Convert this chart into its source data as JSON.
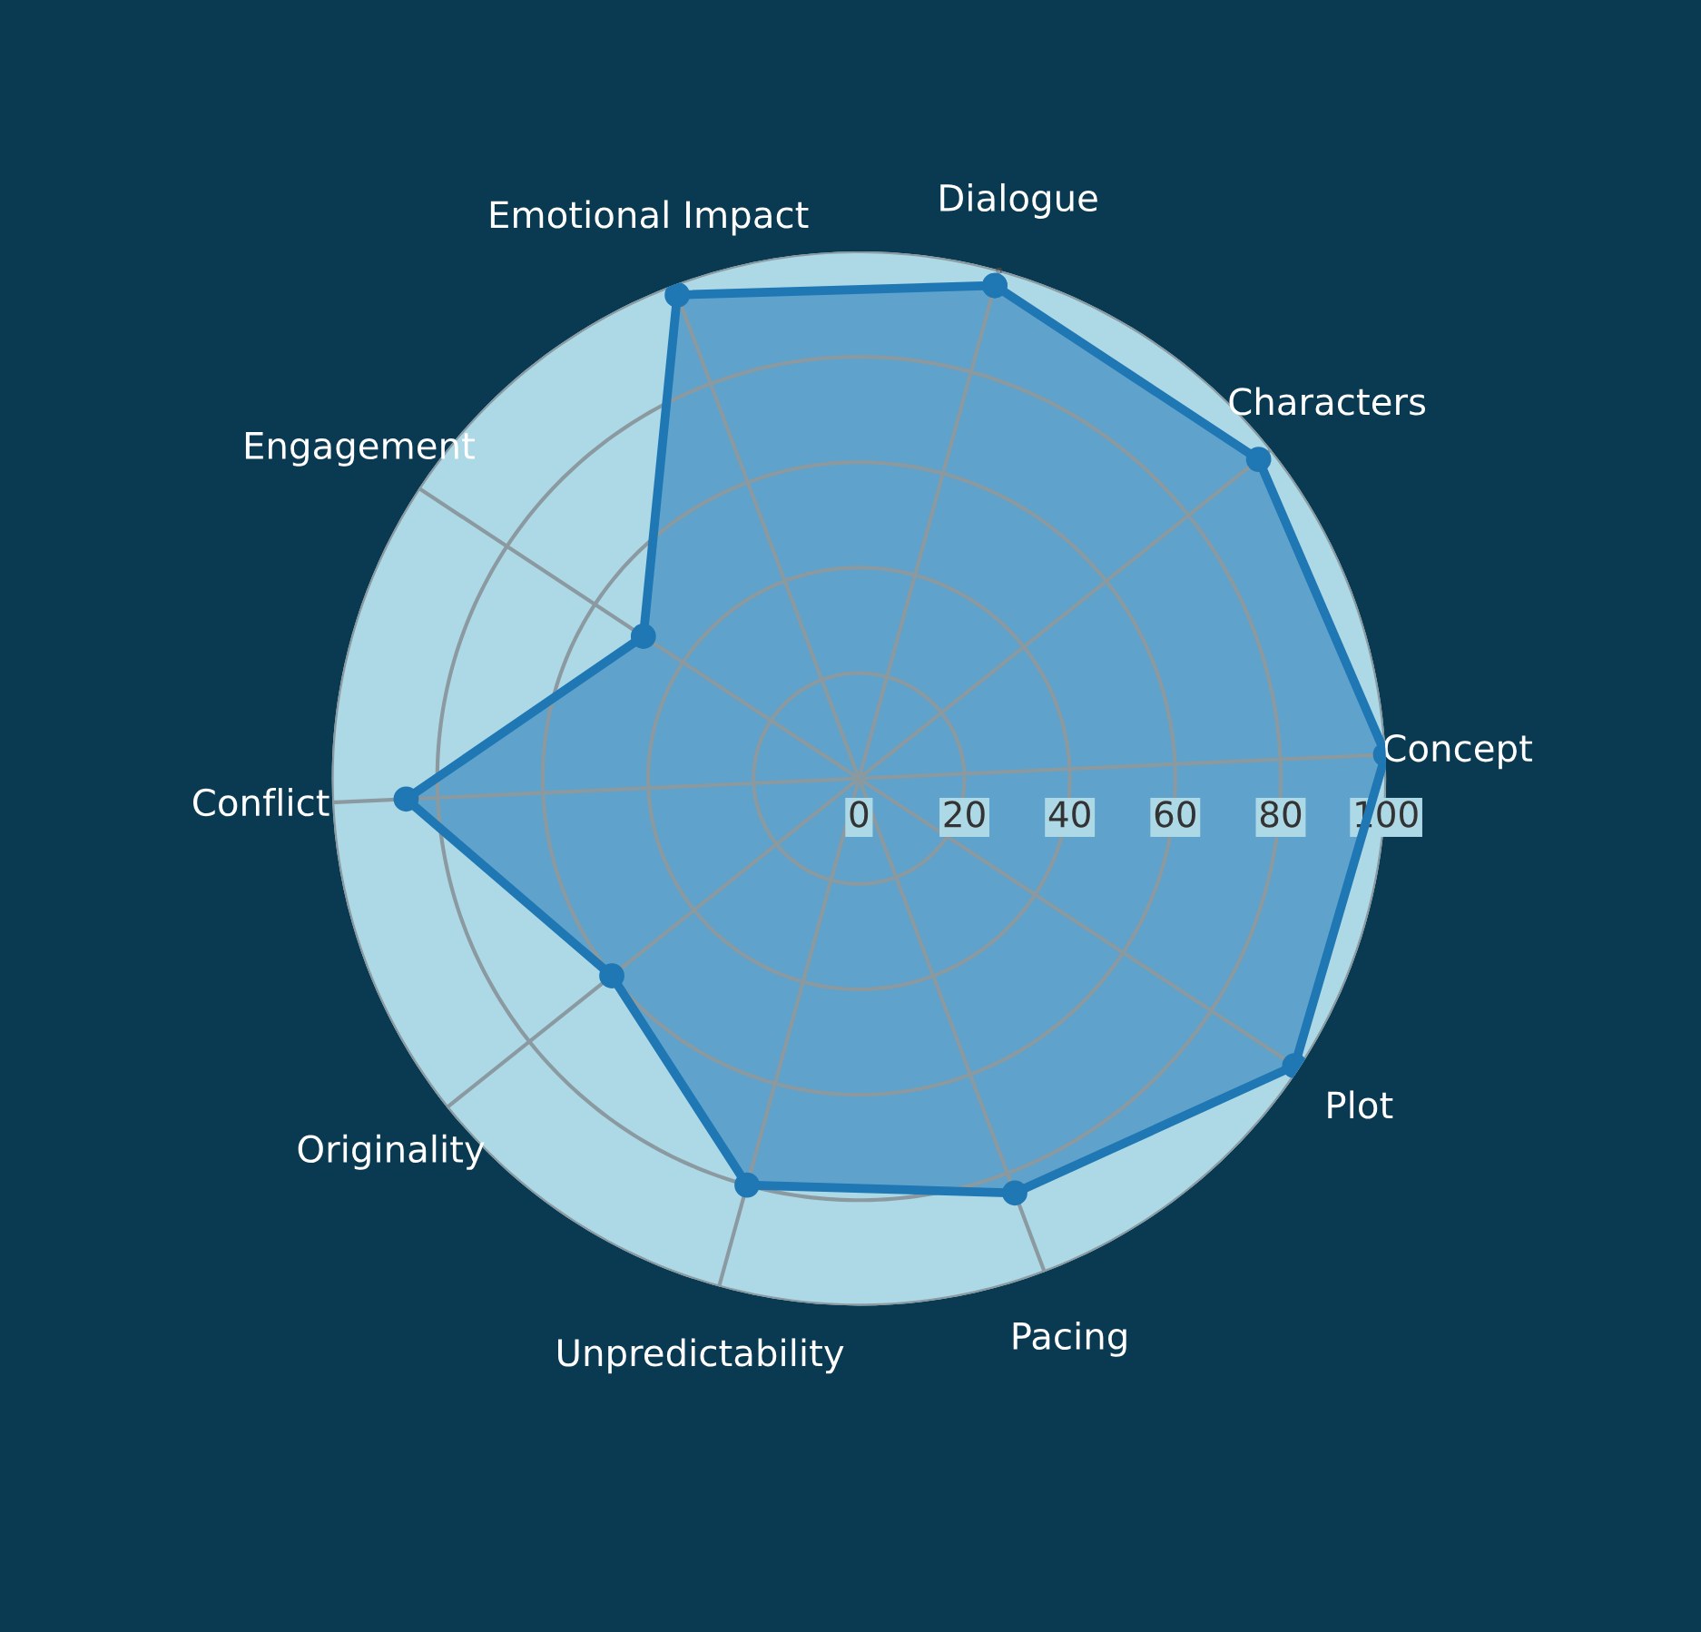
{
  "chart_data": {
    "type": "radar",
    "categories": [
      "Dialogue",
      "Characters",
      "Concept",
      "Plot",
      "Pacing",
      "Unpredictability",
      "Originality",
      "Conflict",
      "Engagement",
      "Emotional Impact"
    ],
    "series": [
      {
        "color": "#1f77b4",
        "values": [
          97,
          97,
          100,
          99,
          84,
          80,
          60,
          86,
          49,
          98
        ]
      }
    ],
    "ylim": [
      0,
      100
    ],
    "yticks": [
      0,
      20,
      40,
      60,
      80,
      100
    ],
    "grid": true,
    "marker": "circle",
    "line_style": "solid"
  }
}
